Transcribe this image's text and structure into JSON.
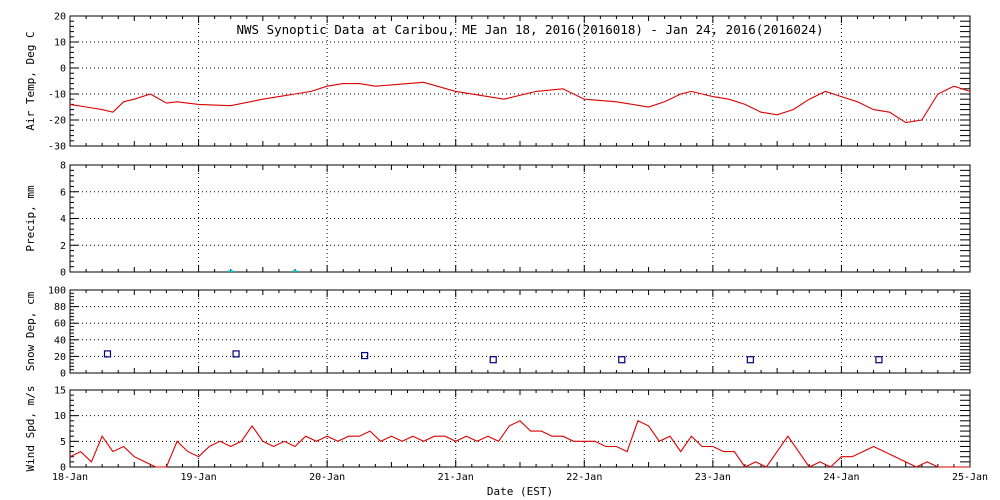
{
  "chart_data": {
    "type": "line",
    "title": "NWS Synoptic Data at Caribou, ME   Jan 18, 2016(2016018) - Jan 24, 2016(2016024)",
    "xlabel": "Date (EST)",
    "x_ticks": [
      "18-Jan",
      "19-Jan",
      "20-Jan",
      "21-Jan",
      "22-Jan",
      "23-Jan",
      "24-Jan",
      "25-Jan"
    ],
    "xlim": [
      "2016-01-18",
      "2016-01-25"
    ],
    "grid": true,
    "colors": {
      "air_temp": "#dd0000",
      "precip": "#00c0c0",
      "snow_depth": "#000080",
      "wind_speed": "#dd0000"
    },
    "panels": [
      {
        "ylabel": "Air Temp, Deg C",
        "ylim": [
          -30,
          20
        ],
        "y_ticks": [
          "20",
          "10",
          "0",
          "-10",
          "-20",
          "-30"
        ],
        "series": [
          {
            "type": "line",
            "x": [
              "2016-01-18 00:00",
              "2016-01-18 03:00",
              "2016-01-18 06:00",
              "2016-01-18 08:00",
              "2016-01-18 10:00",
              "2016-01-18 12:00",
              "2016-01-18 15:00",
              "2016-01-18 18:00",
              "2016-01-18 20:00",
              "2016-01-19 00:00",
              "2016-01-19 06:00",
              "2016-01-19 12:00",
              "2016-01-19 15:00",
              "2016-01-19 18:00",
              "2016-01-19 21:00",
              "2016-01-20 00:00",
              "2016-01-20 03:00",
              "2016-01-20 06:00",
              "2016-01-20 09:00",
              "2016-01-20 12:00",
              "2016-01-20 15:00",
              "2016-01-20 18:00",
              "2016-01-21 00:00",
              "2016-01-21 06:00",
              "2016-01-21 09:00",
              "2016-01-21 15:00",
              "2016-01-21 20:00",
              "2016-01-22 00:00",
              "2016-01-22 06:00",
              "2016-01-22 12:00",
              "2016-01-22 15:00",
              "2016-01-22 18:00",
              "2016-01-22 20:00",
              "2016-01-23 00:00",
              "2016-01-23 03:00",
              "2016-01-23 06:00",
              "2016-01-23 09:00",
              "2016-01-23 12:00",
              "2016-01-23 15:00",
              "2016-01-23 18:00",
              "2016-01-23 21:00",
              "2016-01-24 00:00",
              "2016-01-24 03:00",
              "2016-01-24 06:00",
              "2016-01-24 09:00",
              "2016-01-24 12:00",
              "2016-01-24 15:00",
              "2016-01-24 18:00",
              "2016-01-24 21:00",
              "2016-01-25 00:00"
            ],
            "values": [
              -14,
              -15,
              -16,
              -17,
              -13,
              -12,
              -10,
              -13.5,
              -13,
              -14,
              -14.5,
              -12,
              -11,
              -10,
              -9,
              -7,
              -6,
              -6,
              -7,
              -6.5,
              -6,
              -5.5,
              -9,
              -11,
              -12,
              -9,
              -8,
              -12,
              -13,
              -15,
              -13,
              -10,
              -9,
              -11,
              -12,
              -14,
              -17,
              -18,
              -16,
              -12,
              -9,
              -11,
              -13,
              -16,
              -17,
              -21,
              -20,
              -10,
              -7,
              -9
            ]
          }
        ]
      },
      {
        "ylabel": "Precip, mm",
        "ylim": [
          0,
          8
        ],
        "y_ticks": [
          "8",
          "6",
          "4",
          "2",
          "0"
        ],
        "series": [
          {
            "type": "bar",
            "x": [
              "2016-01-19 06:00",
              "2016-01-19 18:00"
            ],
            "values": [
              0.1,
              0.1
            ]
          }
        ]
      },
      {
        "ylabel": "Snow Dep, cm",
        "ylim": [
          0,
          100
        ],
        "y_ticks": [
          "100",
          "80",
          "60",
          "40",
          "20",
          "0"
        ],
        "series": [
          {
            "type": "scatter",
            "x": [
              "2016-01-18 07:00",
              "2016-01-19 07:00",
              "2016-01-20 07:00",
              "2016-01-21 07:00",
              "2016-01-22 07:00",
              "2016-01-23 07:00",
              "2016-01-24 07:00"
            ],
            "values": [
              23,
              23,
              21,
              16,
              16,
              16,
              16
            ]
          }
        ]
      },
      {
        "ylabel": "Wind Spd, m/s",
        "ylim": [
          0,
          15
        ],
        "y_ticks": [
          "15",
          "10",
          "5",
          "0"
        ],
        "series": [
          {
            "type": "line",
            "x": [
              "2016-01-18 00:00",
              "2016-01-18 02:00",
              "2016-01-18 04:00",
              "2016-01-18 06:00",
              "2016-01-18 08:00",
              "2016-01-18 10:00",
              "2016-01-18 12:00",
              "2016-01-18 14:00",
              "2016-01-18 16:00",
              "2016-01-18 18:00",
              "2016-01-18 20:00",
              "2016-01-18 22:00",
              "2016-01-19 00:00",
              "2016-01-19 02:00",
              "2016-01-19 04:00",
              "2016-01-19 06:00",
              "2016-01-19 08:00",
              "2016-01-19 10:00",
              "2016-01-19 12:00",
              "2016-01-19 14:00",
              "2016-01-19 16:00",
              "2016-01-19 18:00",
              "2016-01-19 20:00",
              "2016-01-19 22:00",
              "2016-01-20 00:00",
              "2016-01-20 02:00",
              "2016-01-20 04:00",
              "2016-01-20 06:00",
              "2016-01-20 08:00",
              "2016-01-20 10:00",
              "2016-01-20 12:00",
              "2016-01-20 14:00",
              "2016-01-20 16:00",
              "2016-01-20 18:00",
              "2016-01-20 20:00",
              "2016-01-20 22:00",
              "2016-01-21 00:00",
              "2016-01-21 02:00",
              "2016-01-21 04:00",
              "2016-01-21 06:00",
              "2016-01-21 08:00",
              "2016-01-21 10:00",
              "2016-01-21 12:00",
              "2016-01-21 14:00",
              "2016-01-21 16:00",
              "2016-01-21 18:00",
              "2016-01-21 20:00",
              "2016-01-21 22:00",
              "2016-01-22 00:00",
              "2016-01-22 02:00",
              "2016-01-22 04:00",
              "2016-01-22 06:00",
              "2016-01-22 08:00",
              "2016-01-22 10:00",
              "2016-01-22 12:00",
              "2016-01-22 14:00",
              "2016-01-22 16:00",
              "2016-01-22 18:00",
              "2016-01-22 20:00",
              "2016-01-22 22:00",
              "2016-01-23 00:00",
              "2016-01-23 02:00",
              "2016-01-23 04:00",
              "2016-01-23 06:00",
              "2016-01-23 08:00",
              "2016-01-23 10:00",
              "2016-01-23 12:00",
              "2016-01-23 14:00",
              "2016-01-23 16:00",
              "2016-01-23 18:00",
              "2016-01-23 20:00",
              "2016-01-23 22:00",
              "2016-01-24 00:00",
              "2016-01-24 02:00",
              "2016-01-24 04:00",
              "2016-01-24 06:00",
              "2016-01-24 08:00",
              "2016-01-24 10:00",
              "2016-01-24 12:00",
              "2016-01-24 14:00",
              "2016-01-24 16:00",
              "2016-01-24 18:00",
              "2016-01-24 20:00",
              "2016-01-24 22:00",
              "2016-01-25 00:00"
            ],
            "values": [
              2,
              3,
              1,
              6,
              3,
              4,
              2,
              1,
              0,
              0,
              5,
              3,
              2,
              4,
              5,
              4,
              5,
              8,
              5,
              4,
              5,
              4,
              6,
              5,
              6,
              5,
              6,
              6,
              7,
              5,
              6,
              5,
              6,
              5,
              6,
              6,
              5,
              6,
              5,
              6,
              5,
              8,
              9,
              7,
              7,
              6,
              6,
              5,
              5,
              5,
              4,
              4,
              3,
              9,
              8,
              5,
              6,
              3,
              6,
              4,
              4,
              3,
              3,
              0,
              1,
              0,
              3,
              6,
              3,
              0,
              1,
              0,
              2,
              2,
              3,
              4,
              3,
              2,
              1,
              0,
              1,
              0,
              0,
              0,
              0
            ]
          }
        ]
      }
    ]
  }
}
